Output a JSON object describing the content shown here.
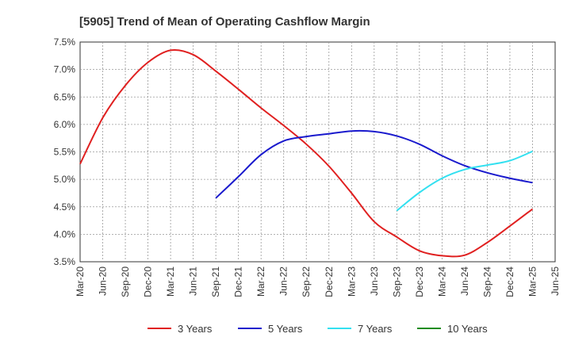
{
  "chart_data": {
    "type": "line",
    "title": "[5905]  Trend of Mean of Operating Cashflow Margin",
    "xlabel": "",
    "ylabel": "",
    "x_ticks": [
      "Mar-20",
      "Jun-20",
      "Sep-20",
      "Dec-20",
      "Mar-21",
      "Jun-21",
      "Sep-21",
      "Dec-21",
      "Mar-22",
      "Jun-22",
      "Sep-22",
      "Dec-22",
      "Mar-23",
      "Jun-23",
      "Sep-23",
      "Dec-23",
      "Mar-24",
      "Jun-24",
      "Sep-24",
      "Dec-24",
      "Mar-25",
      "Jun-25"
    ],
    "y_ticks": [
      "3.5%",
      "4.0%",
      "4.5%",
      "5.0%",
      "5.5%",
      "6.0%",
      "6.5%",
      "7.0%",
      "7.5%"
    ],
    "ylim": [
      3.5,
      7.5
    ],
    "grid": true,
    "legend_position": "bottom",
    "series": [
      {
        "name": "3 Years",
        "color": "#e02020",
        "x": [
          "Mar-20",
          "Jun-20",
          "Sep-20",
          "Dec-20",
          "Mar-21",
          "Jun-21",
          "Sep-21",
          "Dec-21",
          "Mar-22",
          "Jun-22",
          "Sep-22",
          "Dec-22",
          "Mar-23",
          "Jun-23",
          "Sep-23",
          "Dec-23",
          "Mar-24",
          "Jun-24",
          "Sep-24",
          "Dec-24",
          "Mar-25"
        ],
        "values": [
          5.28,
          6.12,
          6.71,
          7.13,
          7.35,
          7.27,
          6.97,
          6.64,
          6.3,
          5.98,
          5.64,
          5.24,
          4.75,
          4.23,
          3.95,
          3.7,
          3.61,
          3.62,
          3.85,
          4.15,
          4.46
        ]
      },
      {
        "name": "5 Years",
        "color": "#1a1acd",
        "x": [
          "Sep-21",
          "Dec-21",
          "Mar-22",
          "Jun-22",
          "Sep-22",
          "Dec-22",
          "Mar-23",
          "Jun-23",
          "Sep-23",
          "Dec-23",
          "Mar-24",
          "Jun-24",
          "Sep-24",
          "Dec-24",
          "Mar-25"
        ],
        "values": [
          4.66,
          5.05,
          5.45,
          5.7,
          5.78,
          5.83,
          5.88,
          5.87,
          5.79,
          5.64,
          5.43,
          5.25,
          5.12,
          5.02,
          4.94
        ]
      },
      {
        "name": "7 Years",
        "color": "#33e0f0",
        "x": [
          "Sep-23",
          "Dec-23",
          "Mar-24",
          "Jun-24",
          "Sep-24",
          "Dec-24",
          "Mar-25"
        ],
        "values": [
          4.43,
          4.76,
          5.02,
          5.18,
          5.26,
          5.34,
          5.51
        ]
      },
      {
        "name": "10 Years",
        "color": "#1e8c1e",
        "x": [],
        "values": []
      }
    ]
  }
}
